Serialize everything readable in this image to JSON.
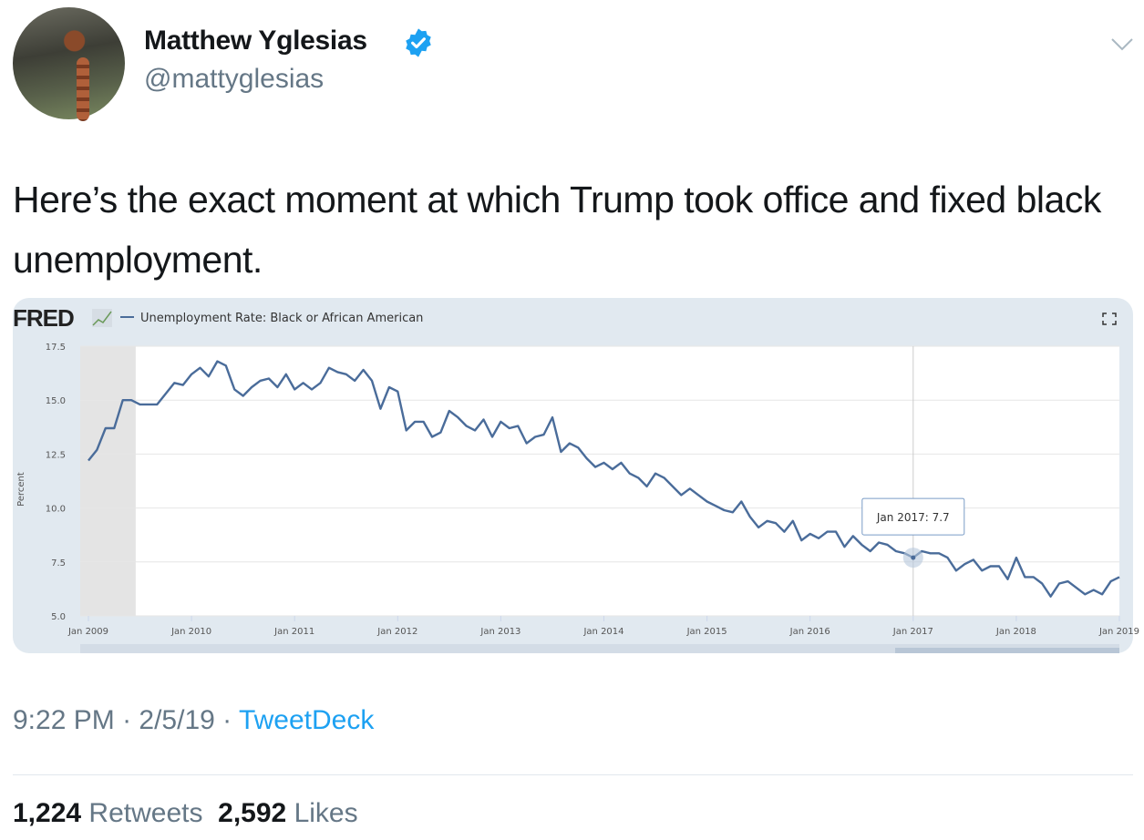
{
  "author": {
    "name": "Matthew Yglesias",
    "handle": "@mattyglesias",
    "verified": true,
    "avatar_icon": "red-panda-photo"
  },
  "tweet": {
    "text": "Here’s the exact moment at which Trump took office and fixed black unemployment."
  },
  "meta": {
    "time": "9:22 PM",
    "separator1": " · ",
    "date": "2/5/19",
    "separator2": " · ",
    "source": "TweetDeck"
  },
  "stats": {
    "retweets": "1,224",
    "retweets_label": "Retweets",
    "likes": "2,592",
    "likes_label": "Likes"
  },
  "colors": {
    "line": "#4a6c9a",
    "card_bg": "#e1e9f0",
    "link": "#1da1f2",
    "recession": "#e4e4e4",
    "muted": "#657786"
  },
  "chart_card": {
    "logo": "FRED",
    "expand_icon": "fullscreen-icon"
  },
  "chart_data": {
    "type": "line",
    "legend": "Unemployment Rate: Black or African American",
    "ylabel": "Percent",
    "xlabel": "",
    "ylim": [
      5.0,
      17.5
    ],
    "yticks": [
      "17.5",
      "15.0",
      "12.5",
      "10.0",
      "7.5",
      "5.0"
    ],
    "xticks": [
      "Jan 2009",
      "Jan 2010",
      "Jan 2011",
      "Jan 2012",
      "Jan 2013",
      "Jan 2014",
      "Jan 2015",
      "Jan 2016",
      "Jan 2017",
      "Jan 2018",
      "Jan 2019"
    ],
    "x_start": "Jan 2009",
    "x_end": "Jan 2019",
    "frequency": "monthly",
    "grid": true,
    "recession_shading": [
      "Jan 2009",
      "Jun 2009"
    ],
    "tooltip": {
      "label": "Jan 2017: 7.7",
      "date": "Jan 2017",
      "value": 7.7
    },
    "values": [
      12.2,
      12.7,
      13.7,
      13.7,
      15.0,
      15.0,
      14.8,
      14.8,
      14.8,
      15.3,
      15.8,
      15.7,
      16.2,
      16.5,
      16.1,
      16.8,
      16.6,
      15.5,
      15.2,
      15.6,
      15.9,
      16.0,
      15.6,
      16.2,
      15.5,
      15.8,
      15.5,
      15.8,
      16.5,
      16.3,
      16.2,
      15.9,
      16.4,
      15.9,
      14.6,
      15.6,
      15.4,
      13.6,
      14.0,
      14.0,
      13.3,
      13.5,
      14.5,
      14.2,
      13.8,
      13.6,
      14.1,
      13.3,
      14.0,
      13.7,
      13.8,
      13.0,
      13.3,
      13.4,
      14.2,
      12.6,
      13.0,
      12.8,
      12.3,
      11.9,
      12.1,
      11.8,
      12.1,
      11.6,
      11.4,
      11.0,
      11.6,
      11.4,
      11.0,
      10.6,
      10.9,
      10.6,
      10.3,
      10.1,
      9.9,
      9.8,
      10.3,
      9.6,
      9.1,
      9.4,
      9.3,
      8.9,
      9.4,
      8.5,
      8.8,
      8.6,
      8.9,
      8.9,
      8.2,
      8.7,
      8.3,
      8.0,
      8.4,
      8.3,
      8.0,
      7.9,
      7.7,
      8.0,
      7.9,
      7.9,
      7.7,
      7.1,
      7.4,
      7.6,
      7.1,
      7.3,
      7.3,
      6.7,
      7.7,
      6.8,
      6.8,
      6.5,
      5.9,
      6.5,
      6.6,
      6.3,
      6.0,
      6.2,
      6.0,
      6.6,
      6.8
    ]
  }
}
